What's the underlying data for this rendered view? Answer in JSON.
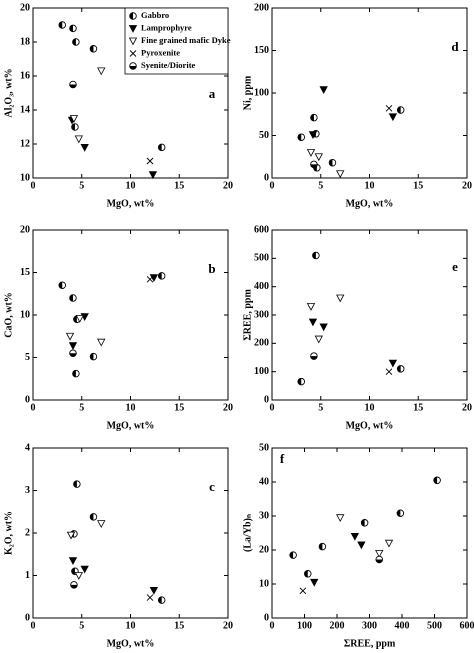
{
  "chart_data": [
    {
      "type": "scatter",
      "label": "a",
      "x_label": "MgO, wt%",
      "y_label": "Al₂O₃, wt%",
      "xlim": [
        0,
        20
      ],
      "xticks": [
        0,
        5,
        10,
        15,
        20
      ],
      "ylim": [
        10,
        20
      ],
      "yticks": [
        10,
        12,
        14,
        16,
        18,
        20
      ],
      "legend": "upper right",
      "series": [
        {
          "name": "Gabbro",
          "marker": "half-left",
          "color": "#000000",
          "x": [
            3,
            4.1,
            4.4,
            6.2,
            4.3,
            13.2
          ],
          "values": [
            19,
            18.8,
            18,
            17.6,
            13,
            11.8
          ]
        },
        {
          "name": "Lamprophyre",
          "marker": "triangle-filled",
          "color": "#000000",
          "x": [
            4,
            5.3,
            12.3
          ],
          "values": [
            13.4,
            11.8,
            10.2
          ]
        },
        {
          "name": "Fine grained mafic Dyke",
          "marker": "triangle-open",
          "color": "#000000",
          "x": [
            7,
            4.7,
            4.2
          ],
          "values": [
            16.3,
            12.3,
            13.5
          ]
        },
        {
          "name": "Pyroxenite",
          "marker": "cross",
          "color": "#000000",
          "x": [
            12
          ],
          "values": [
            11
          ]
        },
        {
          "name": "Syenite/Diorite",
          "marker": "half-right",
          "color": "#000000",
          "x": [
            4.1
          ],
          "values": [
            15.5
          ]
        }
      ]
    },
    {
      "type": "scatter",
      "label": "d",
      "x_label": "MgO, wt%",
      "y_label": "Ni, ppm",
      "xlim": [
        0,
        20
      ],
      "xticks": [
        0,
        5,
        10,
        15,
        20
      ],
      "ylim": [
        0,
        200
      ],
      "yticks": [
        0,
        50,
        100,
        150,
        200
      ],
      "series": [
        {
          "marker": "half-left",
          "color": "#000000",
          "x": [
            3,
            4.3,
            4.5,
            6.2,
            13.2,
            4.6
          ],
          "values": [
            48,
            71,
            52,
            18,
            80,
            12
          ]
        },
        {
          "marker": "triangle-filled",
          "color": "#000000",
          "x": [
            4.2,
            5.3,
            12.4
          ],
          "values": [
            51,
            104,
            72
          ]
        },
        {
          "marker": "triangle-open",
          "color": "#000000",
          "x": [
            4,
            4.8,
            7
          ],
          "values": [
            30,
            25,
            5
          ]
        },
        {
          "marker": "cross",
          "color": "#000000",
          "x": [
            12
          ],
          "values": [
            82
          ]
        },
        {
          "marker": "half-right",
          "color": "#000000",
          "x": [
            4.3
          ],
          "values": [
            16
          ]
        }
      ]
    },
    {
      "type": "scatter",
      "label": "b",
      "x_label": "MgO, wt%",
      "y_label": "CaO, wt%",
      "xlim": [
        0,
        20
      ],
      "xticks": [
        0,
        5,
        10,
        15,
        20
      ],
      "ylim": [
        0,
        20
      ],
      "yticks": [
        0,
        5,
        10,
        15,
        20
      ],
      "series": [
        {
          "marker": "half-left",
          "color": "#000000",
          "x": [
            3,
            4.1,
            4.5,
            6.2,
            13.2,
            4.4
          ],
          "values": [
            13.5,
            12,
            9.5,
            5.1,
            14.6,
            3.1
          ]
        },
        {
          "marker": "triangle-filled",
          "color": "#000000",
          "x": [
            4.1,
            5.3,
            12.4
          ],
          "values": [
            6.4,
            9.8,
            14.4
          ]
        },
        {
          "marker": "triangle-open",
          "color": "#000000",
          "x": [
            3.8,
            7,
            4.8
          ],
          "values": [
            7.5,
            6.8,
            9.6
          ]
        },
        {
          "marker": "cross",
          "color": "#000000",
          "x": [
            12
          ],
          "values": [
            14.2
          ]
        },
        {
          "marker": "half-right",
          "color": "#000000",
          "x": [
            4.1
          ],
          "values": [
            5.5
          ]
        }
      ]
    },
    {
      "type": "scatter",
      "label": "e",
      "x_label": "MgO, wt%",
      "y_label": "ΣREE, ppm",
      "xlim": [
        0,
        20
      ],
      "xticks": [
        0,
        5,
        10,
        15,
        20
      ],
      "ylim": [
        0,
        600
      ],
      "yticks": [
        0,
        100,
        200,
        300,
        400,
        500,
        600
      ],
      "series": [
        {
          "marker": "half-left",
          "color": "#000000",
          "x": [
            3,
            4.5,
            13.2
          ],
          "values": [
            65,
            510,
            110
          ]
        },
        {
          "marker": "triangle-filled",
          "color": "#000000",
          "x": [
            4.2,
            5.3,
            12.4
          ],
          "values": [
            275,
            258,
            130
          ]
        },
        {
          "marker": "triangle-open",
          "color": "#000000",
          "x": [
            4,
            4.8,
            7
          ],
          "values": [
            330,
            215,
            360
          ]
        },
        {
          "marker": "cross",
          "color": "#000000",
          "x": [
            12
          ],
          "values": [
            100
          ]
        },
        {
          "marker": "half-right",
          "color": "#000000",
          "x": [
            4.3
          ],
          "values": [
            155
          ]
        }
      ]
    },
    {
      "type": "scatter",
      "label": "c",
      "x_label": "MgO, wt%",
      "y_label": "K₂O, wt%",
      "xlim": [
        0,
        20
      ],
      "xticks": [
        0,
        5,
        10,
        15,
        20
      ],
      "ylim": [
        0,
        4
      ],
      "yticks": [
        0,
        1,
        2,
        3,
        4
      ],
      "series": [
        {
          "marker": "half-left",
          "color": "#000000",
          "x": [
            4.5,
            6.2,
            4.2,
            4.3,
            13.2
          ],
          "values": [
            3.15,
            2.38,
            1.98,
            1.1,
            0.42
          ]
        },
        {
          "marker": "triangle-filled",
          "color": "#000000",
          "x": [
            4.1,
            5.3,
            12.4
          ],
          "values": [
            1.35,
            1.15,
            0.65
          ]
        },
        {
          "marker": "triangle-open",
          "color": "#000000",
          "x": [
            3.9,
            7,
            4.7
          ],
          "values": [
            1.95,
            2.22,
            1.0
          ]
        },
        {
          "marker": "cross",
          "color": "#000000",
          "x": [
            12
          ],
          "values": [
            0.48
          ]
        },
        {
          "marker": "half-right",
          "color": "#000000",
          "x": [
            4.2
          ],
          "values": [
            0.78
          ]
        }
      ]
    },
    {
      "type": "scatter",
      "label": "f",
      "x_label": "ΣREE, ppm",
      "y_label": "(La/Yb)ₙ",
      "xlim": [
        0,
        600
      ],
      "xticks": [
        0,
        100,
        200,
        300,
        400,
        500,
        600
      ],
      "ylim": [
        0,
        50
      ],
      "yticks": [
        0,
        10,
        20,
        30,
        40,
        50
      ],
      "series": [
        {
          "marker": "half-left",
          "color": "#000000",
          "x": [
            65,
            110,
            155,
            285,
            395,
            508
          ],
          "values": [
            18.5,
            13,
            21,
            28,
            30.8,
            40.5
          ]
        },
        {
          "marker": "triangle-filled",
          "color": "#000000",
          "x": [
            130,
            255,
            275
          ],
          "values": [
            10.5,
            24,
            21.5
          ]
        },
        {
          "marker": "triangle-open",
          "color": "#000000",
          "x": [
            210,
            330,
            360
          ],
          "values": [
            29.5,
            19,
            22
          ]
        },
        {
          "marker": "cross",
          "color": "#000000",
          "x": [
            95
          ],
          "values": [
            8
          ]
        },
        {
          "marker": "half-right",
          "color": "#000000",
          "x": [
            330
          ],
          "values": [
            17.2
          ]
        }
      ]
    }
  ]
}
